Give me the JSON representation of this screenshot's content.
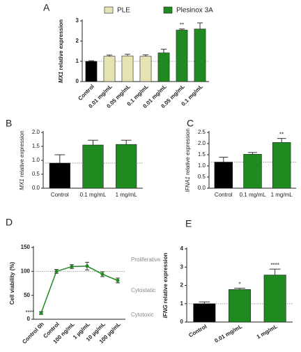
{
  "chart_data": [
    {
      "type": "bar",
      "panel": "A",
      "ylabel_italic": "MX1",
      "ylabel": "relative expression",
      "categories": [
        "Control",
        "0.01 mg/mL",
        "0.05 mg/mL",
        "0.1 mg/mL",
        "0.01 mg/mL",
        "0.05 mg/mL",
        "0.1 mg/mL"
      ],
      "values": [
        1.0,
        1.25,
        1.27,
        1.25,
        1.42,
        2.55,
        2.6
      ],
      "errors": [
        0.03,
        0.06,
        0.08,
        0.07,
        0.18,
        0.05,
        0.3
      ],
      "colors": [
        "#000000",
        "#e6e3b3",
        "#e6e3b3",
        "#e6e3b3",
        "#1f8a1f",
        "#1f8a1f",
        "#1f8a1f"
      ],
      "significance": [
        null,
        null,
        null,
        null,
        null,
        "**",
        null
      ],
      "legend": [
        {
          "name": "PLE",
          "color": "#e6e3b3"
        },
        {
          "name": "Plesinox 3A",
          "color": "#1f8a1f"
        }
      ],
      "ylim": [
        0,
        3
      ],
      "yticks": [
        0,
        1,
        2,
        3
      ],
      "reference_line": 1
    },
    {
      "type": "bar",
      "panel": "B",
      "ylabel_italic": "MX1",
      "ylabel": "relative expression",
      "categories": [
        "Control",
        "0.1 mg/mL",
        "1 mg/mL"
      ],
      "values": [
        0.9,
        1.55,
        1.57
      ],
      "errors": [
        0.3,
        0.17,
        0.15
      ],
      "colors": [
        "#000000",
        "#1f8a1f",
        "#1f8a1f"
      ],
      "ylim": [
        0,
        2
      ],
      "yticks": [
        {
          "value": 0,
          "label": "0.0"
        },
        0.5,
        {
          "value": 1,
          "label": "1.0"
        },
        1.5,
        {
          "value": 2,
          "label": "2.0"
        }
      ],
      "reference_line": 0.9
    },
    {
      "type": "bar",
      "panel": "C",
      "ylabel_italic": "IFNA1",
      "ylabel": "relative expression",
      "categories": [
        "Control",
        "0.1 mg/mL",
        "1 mg/mL"
      ],
      "values": [
        1.17,
        1.52,
        2.05
      ],
      "errors": [
        0.22,
        0.08,
        0.18
      ],
      "colors": [
        "#000000",
        "#1f8a1f",
        "#1f8a1f"
      ],
      "significance": [
        null,
        null,
        "**"
      ],
      "ylim": [
        0,
        2.5
      ],
      "yticks": [
        {
          "value": 0,
          "label": "0.0"
        },
        0.5,
        {
          "value": 1,
          "label": "1.0"
        },
        1.5,
        {
          "value": 2,
          "label": "2.0"
        },
        2.5
      ],
      "reference_line": 1.17
    },
    {
      "type": "line",
      "panel": "D",
      "ylabel": "Cell viability (%)",
      "categories": [
        "Control 0h",
        "Control",
        "100 ng/mL",
        "1 µg/mL",
        "10 µg/mL",
        "100 µg/mL"
      ],
      "values": [
        13,
        100,
        110,
        111,
        94,
        81
      ],
      "errors": [
        3,
        4,
        4,
        8,
        5,
        5
      ],
      "color": "#1f8a1f",
      "significance": [
        "****",
        null,
        null,
        null,
        null,
        null
      ],
      "zones": [
        {
          "label": "Proliferative",
          "value": 124
        },
        {
          "label": "Cytostatic",
          "value": 60
        },
        {
          "label": "Cytotoxic",
          "value": 9
        }
      ],
      "ylim": [
        0,
        150
      ],
      "yticks": [
        0,
        50,
        100,
        150
      ],
      "reference_line": 100
    },
    {
      "type": "bar",
      "panel": "E",
      "ylabel_italic": "IFNG",
      "ylabel": "relative expression",
      "categories": [
        "Control",
        "0.01 mg/mL",
        "1 mg/mL"
      ],
      "values": [
        1.0,
        1.78,
        2.57
      ],
      "errors": [
        0.1,
        0.07,
        0.32
      ],
      "colors": [
        "#000000",
        "#1f8a1f",
        "#1f8a1f"
      ],
      "significance": [
        null,
        "*",
        "****"
      ],
      "ylim": [
        0,
        4
      ],
      "yticks": [
        0,
        1,
        2,
        3,
        4
      ],
      "reference_line": 1
    }
  ]
}
